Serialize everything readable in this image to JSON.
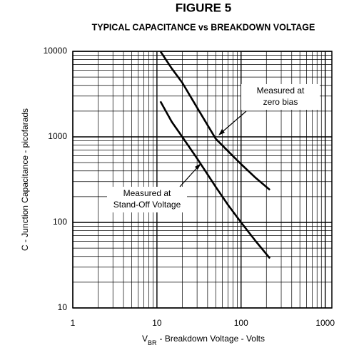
{
  "chart_data": {
    "type": "line",
    "title": "FIGURE 5",
    "subtitle": "TYPICAL CAPACITANCE vs BREAKDOWN VOLTAGE",
    "xlabel": {
      "symbol": "V",
      "subscript": "BR",
      "text": "- Breakdown Voltage - Volts"
    },
    "ylabel": "C - Junction Capacitance - picofarads",
    "log_x": true,
    "log_y": true,
    "grid": true,
    "xlim": [
      1,
      1200
    ],
    "ylim": [
      10,
      10000
    ],
    "xticks": [
      1,
      10,
      100,
      1000
    ],
    "yticks": [
      10,
      100,
      1000,
      10000
    ],
    "xminorticks": [
      2,
      3,
      4,
      5,
      6,
      7,
      8,
      9,
      20,
      30,
      40,
      50,
      60,
      70,
      80,
      90,
      200,
      300,
      400,
      500,
      600,
      700,
      800,
      900
    ],
    "yminorticks": [
      20,
      30,
      40,
      50,
      60,
      70,
      80,
      90,
      200,
      300,
      400,
      500,
      600,
      700,
      800,
      900,
      2000,
      3000,
      4000,
      5000,
      6000,
      7000,
      8000,
      9000
    ],
    "series": [
      {
        "name": "Measured at zero bias",
        "color": "#000000",
        "x": [
          11,
          15,
          20,
          30,
          50,
          70,
          100,
          150,
          220
        ],
        "values": [
          10000,
          6300,
          4300,
          2200,
          950,
          680,
          480,
          330,
          240
        ]
      },
      {
        "name": "Measured at Stand-Off Voltage",
        "color": "#000000",
        "x": [
          11,
          15,
          20,
          30,
          50,
          70,
          100,
          150,
          220
        ],
        "values": [
          2600,
          1500,
          1000,
          560,
          260,
          160,
          100,
          60,
          38
        ]
      }
    ],
    "annotations": [
      {
        "lines": [
          "Measured at",
          "zero bias"
        ]
      },
      {
        "lines": [
          "Measured at",
          "Stand-Off Voltage"
        ]
      }
    ]
  }
}
